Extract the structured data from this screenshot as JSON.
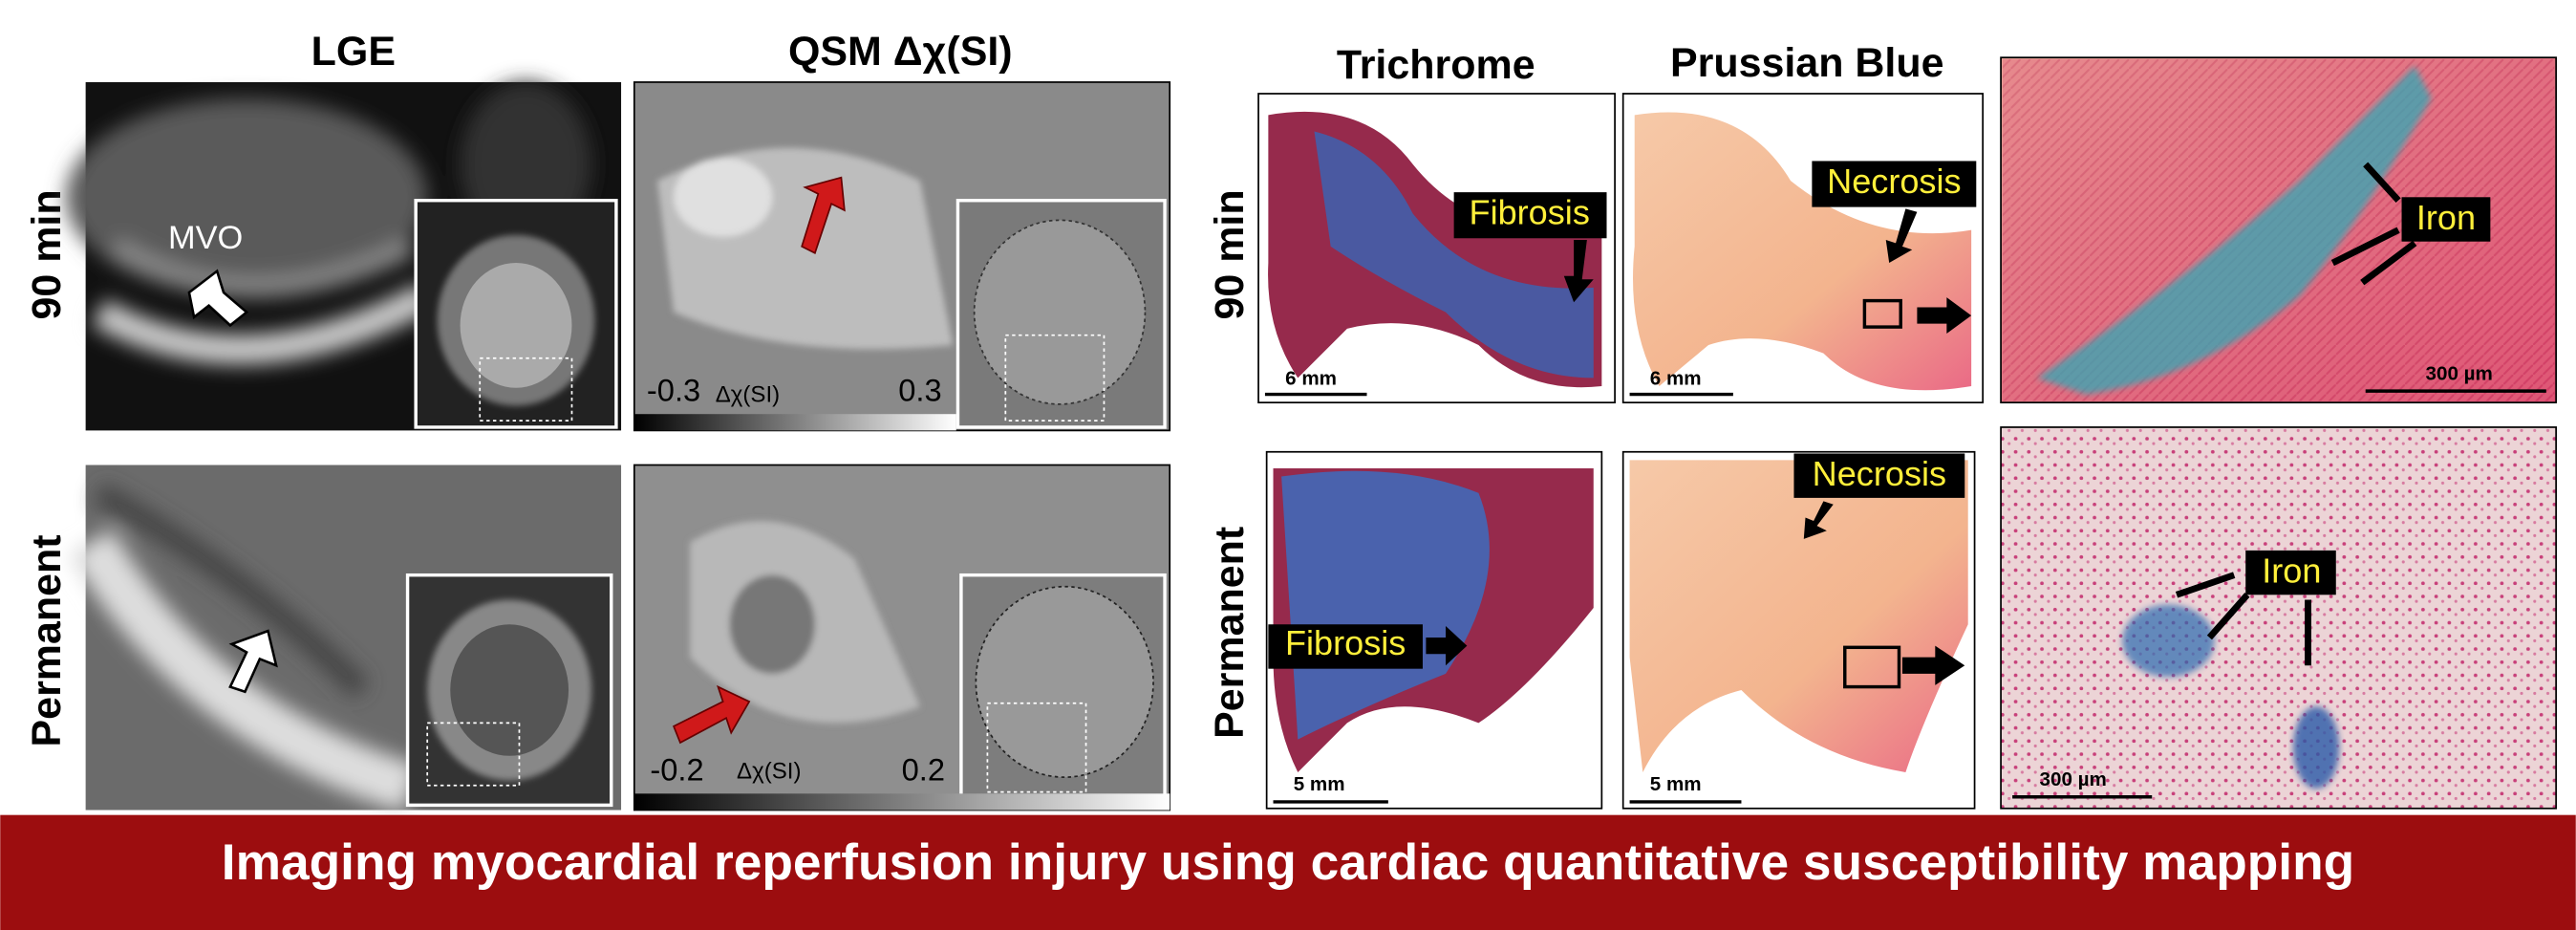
{
  "title": "Imaging myocardial reperfusion injury using cardiac quantitative susceptibility mapping",
  "mri": {
    "columns": [
      "LGE",
      "QSM Δχ(SI)"
    ],
    "rows": [
      "90 min",
      "Permanent"
    ],
    "arrow_label": "MVO",
    "colorbars": [
      {
        "min": "-0.3",
        "unit": "Δχ(SI)",
        "max": "0.3"
      },
      {
        "min": "-0.2",
        "unit": "Δχ(SI)",
        "max": "0.2"
      }
    ]
  },
  "histology": {
    "columns": [
      "Trichrome",
      "Prussian Blue"
    ],
    "rows": [
      "90 min",
      "Permanent"
    ],
    "labels": {
      "fibrosis": "Fibrosis",
      "necrosis": "Necrosis",
      "iron": "Iron"
    },
    "scalebars": {
      "row1_gross": "6 mm",
      "row2_gross": "5 mm",
      "micro": "300 µm"
    }
  }
}
